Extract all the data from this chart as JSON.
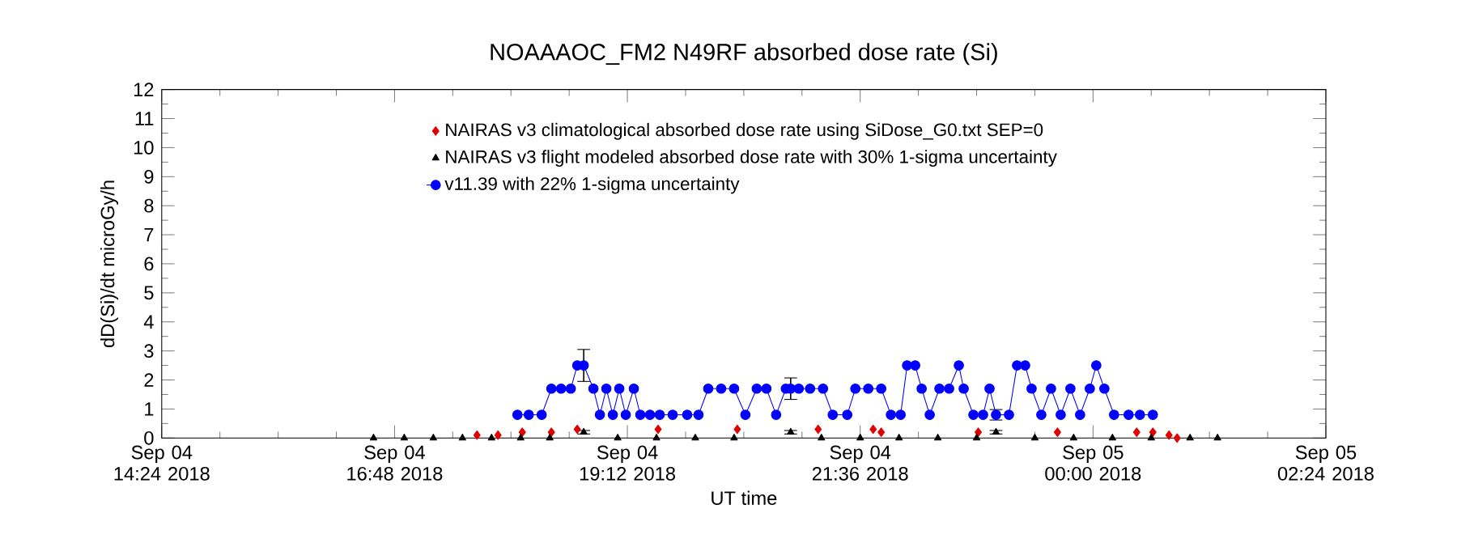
{
  "chart_data": {
    "type": "line",
    "title": "NOAAAOC_FM2   N49RF  absorbed dose rate (Si)",
    "xlabel": "UT time",
    "ylabel": "dD(Si)/dt microGy/h",
    "xlim": [
      "2018-09-04T14:24",
      "2018-09-05T02:24"
    ],
    "xticks": [
      {
        "value": "2018-09-04T14:24",
        "label": "Sep 04 14:24 2018"
      },
      {
        "value": "2018-09-04T16:48",
        "label": "Sep 04 16:48 2018"
      },
      {
        "value": "2018-09-04T19:12",
        "label": "Sep 04 19:12 2018"
      },
      {
        "value": "2018-09-04T21:36",
        "label": "Sep 04 21:36 2018"
      },
      {
        "value": "2018-09-05T00:00",
        "label": "Sep 05 00:00 2018"
      },
      {
        "value": "2018-09-05T02:24",
        "label": "Sep 05 02:24 2018"
      }
    ],
    "ylim": [
      0,
      12
    ],
    "yticks": [
      0,
      1,
      2,
      3,
      4,
      5,
      6,
      7,
      8,
      9,
      10,
      11,
      12
    ],
    "grid": false,
    "legend": "top",
    "series": [
      {
        "name": "NAIRAS v3 climatological absorbed dose rate using SiDose_G0.txt SEP=0",
        "color": "#e00000",
        "type": "scatter",
        "marker": "diamond",
        "x": [
          "2018-09-04T17:39",
          "2018-09-04T17:52",
          "2018-09-04T18:07",
          "2018-09-04T18:25",
          "2018-09-04T18:41",
          "2018-09-04T19:31",
          "2018-09-04T20:20",
          "2018-09-04T21:10",
          "2018-09-04T21:44",
          "2018-09-04T21:49",
          "2018-09-04T22:49",
          "2018-09-04T23:38",
          "2018-09-05T00:27",
          "2018-09-05T00:37",
          "2018-09-05T00:47",
          "2018-09-05T00:52"
        ],
        "values": [
          0.1,
          0.1,
          0.2,
          0.2,
          0.3,
          0.3,
          0.3,
          0.3,
          0.3,
          0.2,
          0.2,
          0.2,
          0.2,
          0.2,
          0.1,
          0.0
        ]
      },
      {
        "name": "NAIRAS v3 flight modeled absorbed dose rate with 30% 1-sigma uncertainty",
        "color": "#000000",
        "type": "scatter",
        "marker": "triangle",
        "x": [
          "2018-09-04T16:35",
          "2018-09-04T16:54",
          "2018-09-04T17:12",
          "2018-09-04T17:30",
          "2018-09-04T17:48",
          "2018-09-04T18:06",
          "2018-09-04T18:24",
          "2018-09-04T18:45",
          "2018-09-04T19:06",
          "2018-09-04T19:30",
          "2018-09-04T19:54",
          "2018-09-04T20:18",
          "2018-09-04T20:53",
          "2018-09-04T21:12",
          "2018-09-04T21:36",
          "2018-09-04T22:00",
          "2018-09-04T22:24",
          "2018-09-04T22:48",
          "2018-09-04T23:00",
          "2018-09-04T23:24",
          "2018-09-04T23:48",
          "2018-09-05T00:12",
          "2018-09-05T00:36",
          "2018-09-05T01:00",
          "2018-09-05T01:17"
        ],
        "values": [
          0,
          0,
          0,
          0,
          0,
          0,
          0,
          0.2,
          0,
          0,
          0,
          0,
          0.2,
          0,
          0,
          0,
          0,
          0,
          0.2,
          0,
          0,
          0,
          0,
          0,
          0
        ],
        "errors": [
          null,
          null,
          null,
          null,
          null,
          null,
          null,
          0.06,
          null,
          null,
          null,
          null,
          0.06,
          null,
          null,
          null,
          null,
          null,
          0.06,
          null,
          null,
          null,
          null,
          null,
          null
        ]
      },
      {
        "name": "v11.39 with 22% 1-sigma uncertainty",
        "color": "#0000ff",
        "marker": "circle",
        "x": [
          "2018-09-04T18:04",
          "2018-09-04T18:11",
          "2018-09-04T18:19",
          "2018-09-04T18:25",
          "2018-09-04T18:31",
          "2018-09-04T18:37",
          "2018-09-04T18:41",
          "2018-09-04T18:45",
          "2018-09-04T18:51",
          "2018-09-04T18:55",
          "2018-09-04T18:59",
          "2018-09-04T19:03",
          "2018-09-04T19:07",
          "2018-09-04T19:11",
          "2018-09-04T19:16",
          "2018-09-04T19:20",
          "2018-09-04T19:26",
          "2018-09-04T19:32",
          "2018-09-04T19:40",
          "2018-09-04T19:49",
          "2018-09-04T19:56",
          "2018-09-04T20:02",
          "2018-09-04T20:10",
          "2018-09-04T20:18",
          "2018-09-04T20:25",
          "2018-09-04T20:32",
          "2018-09-04T20:38",
          "2018-09-04T20:44",
          "2018-09-04T20:50",
          "2018-09-04T20:53",
          "2018-09-04T20:58",
          "2018-09-04T21:05",
          "2018-09-04T21:13",
          "2018-09-04T21:19",
          "2018-09-04T21:28",
          "2018-09-04T21:33",
          "2018-09-04T21:41",
          "2018-09-04T21:49",
          "2018-09-04T21:55",
          "2018-09-04T22:01",
          "2018-09-04T22:05",
          "2018-09-04T22:10",
          "2018-09-04T22:14",
          "2018-09-04T22:19",
          "2018-09-04T22:25",
          "2018-09-04T22:31",
          "2018-09-04T22:37",
          "2018-09-04T22:40",
          "2018-09-04T22:46",
          "2018-09-04T22:52",
          "2018-09-04T22:56",
          "2018-09-04T23:00",
          "2018-09-04T23:08",
          "2018-09-04T23:13",
          "2018-09-04T23:18",
          "2018-09-04T23:22",
          "2018-09-04T23:28",
          "2018-09-04T23:34",
          "2018-09-04T23:40",
          "2018-09-04T23:46",
          "2018-09-04T23:52",
          "2018-09-04T23:58",
          "2018-09-05T00:02",
          "2018-09-05T00:07",
          "2018-09-05T00:13",
          "2018-09-05T00:22",
          "2018-09-05T00:29",
          "2018-09-05T00:37"
        ],
        "values": [
          0.8,
          0.8,
          0.8,
          1.7,
          1.7,
          1.7,
          2.5,
          2.5,
          1.7,
          0.8,
          1.7,
          0.8,
          1.7,
          0.8,
          1.7,
          0.8,
          0.8,
          0.8,
          0.8,
          0.8,
          0.8,
          1.7,
          1.7,
          1.7,
          0.8,
          1.7,
          1.7,
          0.8,
          1.7,
          1.7,
          1.7,
          1.7,
          1.7,
          0.8,
          0.8,
          1.7,
          1.7,
          1.7,
          0.8,
          0.8,
          2.5,
          2.5,
          1.7,
          0.8,
          1.7,
          1.7,
          2.5,
          1.7,
          0.8,
          0.8,
          1.7,
          0.8,
          0.8,
          2.5,
          2.5,
          1.7,
          0.8,
          1.7,
          0.8,
          1.7,
          0.8,
          1.7,
          2.5,
          1.7,
          0.8,
          0.8,
          0.8,
          0.8
        ],
        "errors": [
          null,
          null,
          null,
          null,
          null,
          null,
          null,
          0.55,
          null,
          null,
          null,
          null,
          null,
          null,
          null,
          null,
          null,
          null,
          null,
          null,
          null,
          null,
          null,
          null,
          null,
          null,
          null,
          null,
          null,
          0.37,
          null,
          null,
          null,
          null,
          null,
          null,
          null,
          null,
          null,
          null,
          null,
          null,
          null,
          null,
          null,
          null,
          null,
          null,
          null,
          null,
          null,
          0.18,
          null,
          null,
          null,
          null,
          null,
          null,
          null,
          null,
          null,
          null,
          null,
          null,
          null,
          null,
          null,
          null
        ]
      }
    ]
  }
}
